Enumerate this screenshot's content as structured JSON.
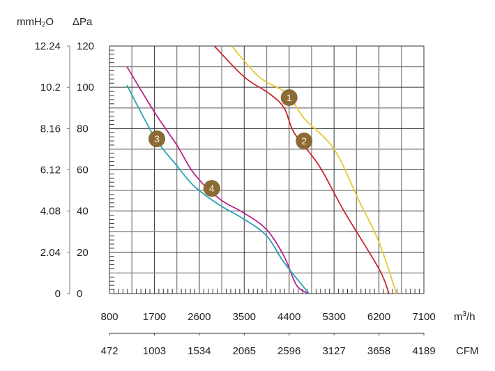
{
  "chart_data": {
    "type": "line",
    "title": "",
    "y_units": [
      "mmH2O",
      "ΔPa"
    ],
    "xlabel_primary": "m³/h",
    "xlabel_secondary": "CFM",
    "x_ticks_m3h": [
      800,
      1700,
      2600,
      3500,
      4400,
      5300,
      6200,
      7100
    ],
    "x_ticks_cfm": [
      472,
      1003,
      1534,
      2065,
      2596,
      3127,
      3658,
      4189
    ],
    "y_ticks_pa": [
      0,
      20,
      40,
      60,
      80,
      100,
      120
    ],
    "y_ticks_mmh2o": [
      "0",
      "2.04",
      "4.08",
      "6.12",
      "8.16",
      "10.2",
      "12.24"
    ],
    "xlim": [
      800,
      7100
    ],
    "ylim": [
      0,
      120
    ],
    "grid": true,
    "series": [
      {
        "name": "1",
        "color": "#e8c832",
        "x": [
          3250,
          3800,
          4350,
          4700,
          5300,
          5800,
          6200,
          6550
        ],
        "y": [
          120,
          105,
          97,
          85,
          70,
          45,
          25,
          0
        ],
        "marker_at": [
          4400,
          95
        ]
      },
      {
        "name": "2",
        "color": "#c8262f",
        "x": [
          2900,
          3500,
          4000,
          4300,
          4500,
          5000,
          5500,
          6200,
          6400
        ],
        "y": [
          120,
          105,
          97,
          90,
          78,
          62,
          40,
          12,
          0
        ],
        "marker_at": [
          4700,
          74
        ]
      },
      {
        "name": "3",
        "color": "#b5268a",
        "x": [
          1150,
          1700,
          2150,
          2500,
          3000,
          3500,
          3950,
          4300,
          4550,
          4800
        ],
        "y": [
          110,
          88,
          72,
          58,
          46,
          39,
          31,
          18,
          4,
          0
        ],
        "marker_at": [
          1750,
          75
        ]
      },
      {
        "name": "4",
        "color": "#2aa0b4",
        "x": [
          1150,
          1700,
          2150,
          2500,
          3000,
          3500,
          3950,
          4300,
          4800
        ],
        "y": [
          101,
          76,
          62,
          52,
          43,
          36,
          28,
          15,
          0
        ],
        "marker_at": [
          2850,
          51
        ]
      }
    ],
    "marker_color": "#8b6a36"
  }
}
